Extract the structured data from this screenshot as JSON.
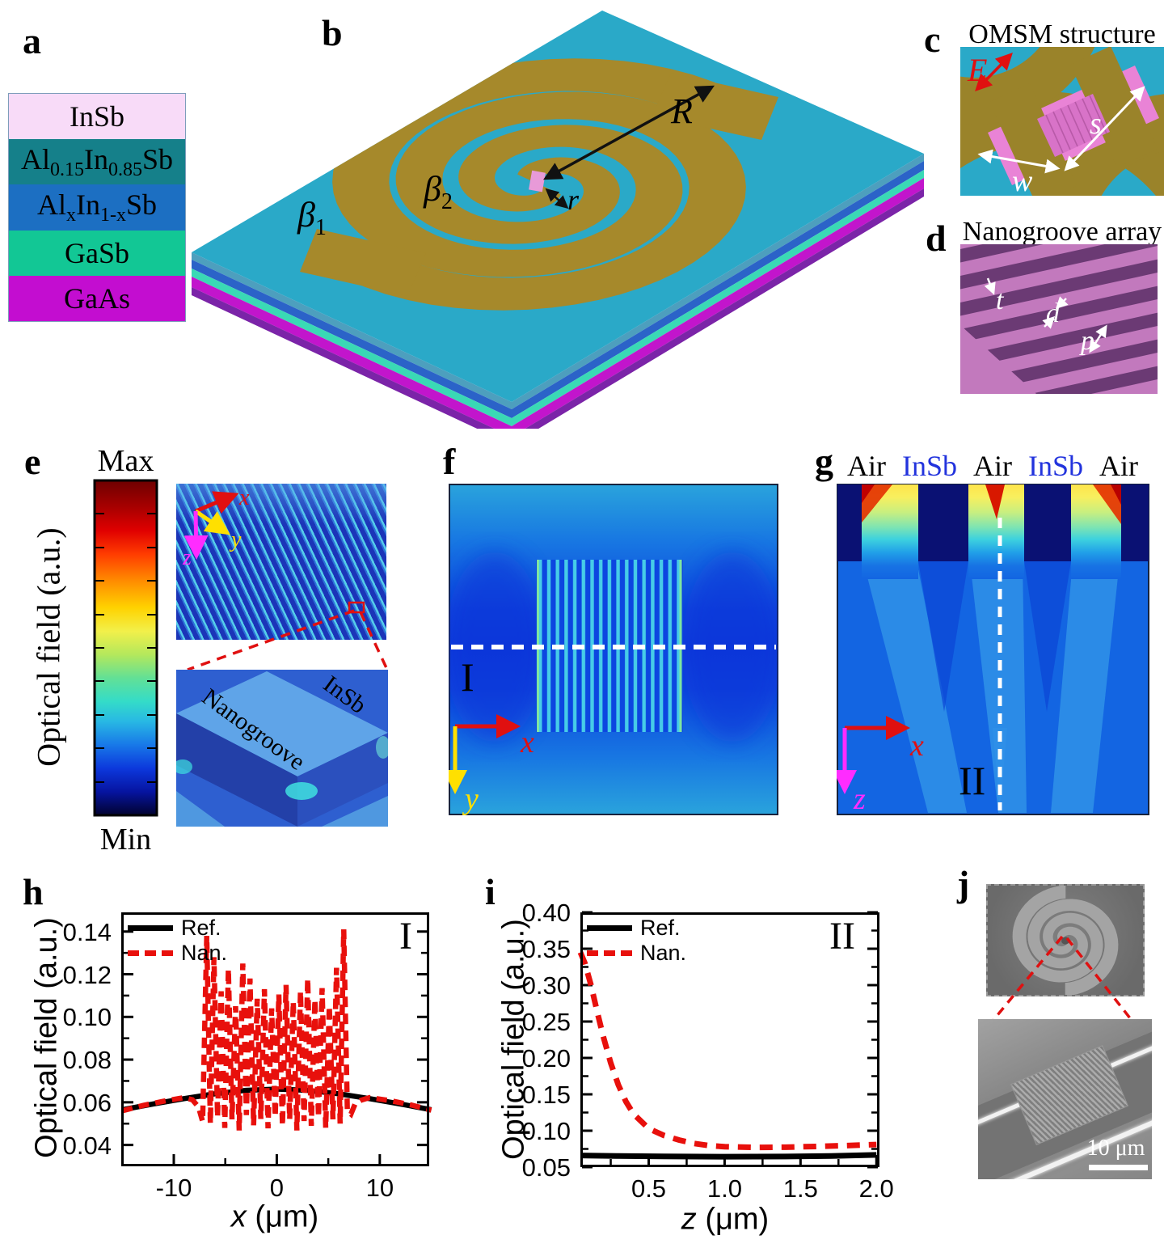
{
  "panel_a": {
    "label": "a",
    "layers": [
      {
        "parts": [
          [
            "t",
            "InSb"
          ]
        ],
        "color": "#F8DBF8"
      },
      {
        "parts": [
          [
            "t",
            "Al"
          ],
          [
            "s",
            "0.15"
          ],
          [
            "t",
            "In"
          ],
          [
            "s",
            "0.85"
          ],
          [
            "t",
            "Sb"
          ]
        ],
        "color": "#15808A"
      },
      {
        "parts": [
          [
            "t",
            "Al"
          ],
          [
            "s",
            "x"
          ],
          [
            "t",
            "In"
          ],
          [
            "s",
            "1-x"
          ],
          [
            "t",
            "Sb"
          ]
        ],
        "color": "#1C6FC2"
      },
      {
        "parts": [
          [
            "t",
            "GaSb"
          ]
        ],
        "color": "#12C795"
      },
      {
        "parts": [
          [
            "t",
            "GaAs"
          ]
        ],
        "color": "#C30DD0"
      }
    ]
  },
  "panel_b": {
    "label": "b",
    "beta1_base": "β",
    "beta1_sub": "1",
    "beta2_base": "β",
    "beta2_sub": "2",
    "R_label": "R",
    "r_label": "r",
    "colors": {
      "substrate": "#2AA9C8",
      "spiral": "#A6892B",
      "center_mesa": "#E89AD8"
    }
  },
  "panel_c": {
    "label": "c",
    "title": "OMSM structure",
    "e": "E",
    "s": "s",
    "w": "w"
  },
  "panel_d": {
    "label": "d",
    "title": "Nanogroove array",
    "t": "t",
    "d": "d",
    "p": "p"
  },
  "panel_e": {
    "label": "e",
    "max": "Max",
    "min": "Min",
    "bar_title": "Optical field (a.u.)",
    "x": "x",
    "y": "y",
    "z": "z",
    "nanogroove": "Nanogroove",
    "insb": "InSb"
  },
  "panel_f": {
    "label": "f",
    "section": "I",
    "x": "x",
    "y": "y"
  },
  "panel_g": {
    "label": "g",
    "header": [
      {
        "t": "Air",
        "c": "#000000"
      },
      {
        "t": "InSb",
        "c": "#2233DD"
      },
      {
        "t": "Air",
        "c": "#000000"
      },
      {
        "t": "InSb",
        "c": "#2233DD"
      },
      {
        "t": "Air",
        "c": "#000000"
      }
    ],
    "section": "II",
    "x": "x",
    "z": "z"
  },
  "panel_h": {
    "label": "h"
  },
  "panel_i": {
    "label": "i"
  },
  "panel_j": {
    "label": "j",
    "scalebar": "10 μm"
  },
  "chart_data": [
    {
      "type": "line",
      "panel": "h",
      "title": "",
      "xlabel": "x (μm)",
      "xlabel_var": "x",
      "xlabel_rest": " (μm)",
      "ylabel": "Optical field (a.u.)",
      "annotation": "I",
      "xlim": [
        -15.1,
        14.8
      ],
      "ylim": [
        0.03,
        0.149
      ],
      "grid": false,
      "legend_position": "top-left",
      "xticks": [
        -10,
        0,
        10
      ],
      "xtick_labels": [
        "-10",
        "0",
        "10"
      ],
      "xticks_minor": [
        -15,
        -5,
        5
      ],
      "yticks": [
        0.04,
        0.06,
        0.08,
        0.1,
        0.12,
        0.14
      ],
      "ytick_labels": [
        "0.04",
        "0.06",
        "0.08",
        "0.10",
        "0.12",
        "0.14"
      ],
      "yticks_minor": [
        0.05,
        0.07,
        0.09,
        0.11,
        0.13
      ],
      "legend": [
        {
          "label": "Ref.",
          "color": "#000000",
          "dash": false
        },
        {
          "label": "Nan.",
          "color": "#E8100C",
          "dash": true
        }
      ],
      "series": [
        {
          "name": "Ref.",
          "color": "#000000",
          "width": 6.5,
          "dash": null,
          "x": [
            -15,
            -12,
            -9,
            -6,
            -3,
            0,
            3,
            6,
            9,
            12,
            15
          ],
          "y": [
            0.0565,
            0.0592,
            0.0617,
            0.064,
            0.0656,
            0.0662,
            0.0656,
            0.064,
            0.0617,
            0.0592,
            0.0565
          ]
        },
        {
          "name": "Nan.",
          "color": "#E8100C",
          "width": 6.5,
          "dash": "13 8",
          "x": [
            -15,
            -13,
            -11,
            -9,
            -8.2,
            -7.6,
            -7.2,
            -6.8,
            -6.45,
            -6.1,
            -5.75,
            -5.4,
            -5.05,
            -4.7,
            -4.35,
            -4.0,
            -3.65,
            -3.3,
            -2.95,
            -2.6,
            -2.25,
            -1.9,
            -1.55,
            -1.2,
            -0.85,
            -0.5,
            -0.15,
            0.2,
            0.55,
            0.9,
            1.25,
            1.6,
            1.95,
            2.3,
            2.65,
            3.0,
            3.35,
            3.7,
            4.05,
            4.4,
            4.75,
            5.1,
            5.45,
            5.8,
            6.15,
            6.5,
            6.85,
            7.2,
            7.6,
            8.2,
            9,
            11,
            13,
            15
          ],
          "y": [
            0.056,
            0.0585,
            0.0605,
            0.0622,
            0.0612,
            0.0578,
            0.051,
            0.138,
            0.05,
            0.128,
            0.053,
            0.112,
            0.048,
            0.1225,
            0.052,
            0.105,
            0.0468,
            0.125,
            0.054,
            0.118,
            0.0492,
            0.1085,
            0.0522,
            0.113,
            0.0478,
            0.104,
            0.0532,
            0.1105,
            0.049,
            0.115,
            0.052,
            0.1072,
            0.0468,
            0.112,
            0.0512,
            0.118,
            0.049,
            0.1082,
            0.053,
            0.1135,
            0.048,
            0.1052,
            0.052,
            0.123,
            0.05,
            0.141,
            0.056,
            0.0545,
            0.0592,
            0.061,
            0.0622,
            0.0608,
            0.0588,
            0.0563
          ]
        }
      ]
    },
    {
      "type": "line",
      "panel": "i",
      "title": "",
      "xlabel": "z (μm)",
      "xlabel_var": "z",
      "xlabel_rest": " (μm)",
      "ylabel": "Optical field (a.u.)",
      "annotation": "II",
      "xlim": [
        0.05,
        2.02
      ],
      "ylim": [
        0.05,
        0.4
      ],
      "grid": false,
      "legend_position": "top-left",
      "xticks": [
        0.5,
        1.0,
        1.5,
        2.0
      ],
      "xtick_labels": [
        "0.5",
        "1.0",
        "1.5",
        "2.0"
      ],
      "xticks_minor": [
        0.25,
        0.75,
        1.25,
        1.75
      ],
      "yticks": [
        0.05,
        0.1,
        0.15,
        0.2,
        0.25,
        0.3,
        0.35,
        0.4
      ],
      "ytick_labels": [
        "0.05",
        "0.10",
        "0.15",
        "0.20",
        "0.25",
        "0.30",
        "0.35",
        "0.40"
      ],
      "yticks_minor": [
        0.075,
        0.125,
        0.175,
        0.225,
        0.275,
        0.325,
        0.375
      ],
      "legend": [
        {
          "label": "Ref.",
          "color": "#000000",
          "dash": false
        },
        {
          "label": "Nan.",
          "color": "#E8100C",
          "dash": true
        }
      ],
      "series": [
        {
          "name": "Ref.",
          "color": "#000000",
          "width": 7,
          "dash": null,
          "x": [
            0.05,
            0.3,
            0.6,
            1.0,
            1.4,
            1.7,
            2.0
          ],
          "y": [
            0.066,
            0.0653,
            0.0647,
            0.0643,
            0.0646,
            0.0653,
            0.0668
          ]
        },
        {
          "name": "Nan.",
          "color": "#E8100C",
          "width": 7,
          "dash": "16 11",
          "x": [
            0.05,
            0.08,
            0.12,
            0.16,
            0.2,
            0.25,
            0.3,
            0.35,
            0.4,
            0.5,
            0.6,
            0.7,
            0.8,
            0.9,
            1.0,
            1.2,
            1.4,
            1.6,
            1.8,
            2.0
          ],
          "y": [
            0.345,
            0.33,
            0.3,
            0.264,
            0.23,
            0.193,
            0.163,
            0.14,
            0.123,
            0.103,
            0.0935,
            0.0872,
            0.0825,
            0.0795,
            0.0781,
            0.0771,
            0.0774,
            0.0784,
            0.0796,
            0.081
          ]
        }
      ]
    }
  ]
}
